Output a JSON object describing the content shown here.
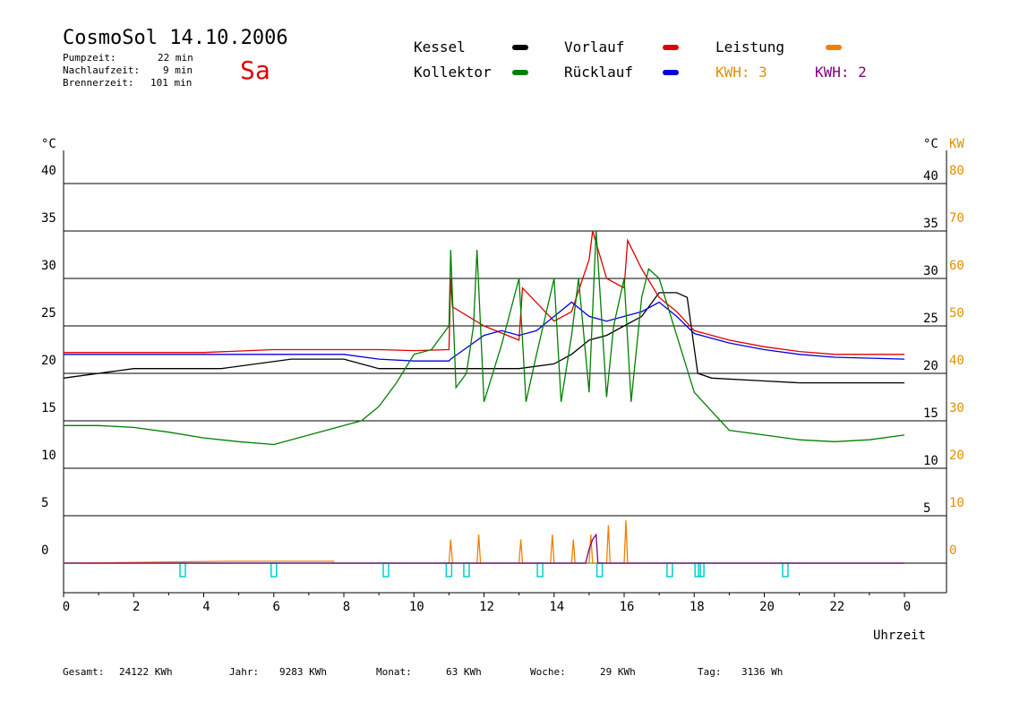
{
  "header": {
    "title": "CosmoSol 14.10.2006",
    "day": "Sa",
    "stats": [
      {
        "label": "Pumpzeit:",
        "value": "22 min"
      },
      {
        "label": "Nachlaufzeit:",
        "value": "9 min"
      },
      {
        "label": "Brennerzeit:",
        "value": "101 min"
      }
    ]
  },
  "legend": {
    "kessel": {
      "label": "Kessel",
      "color": "#000000"
    },
    "vorlauf": {
      "label": "Vorlauf",
      "color": "#e00000"
    },
    "leistung": {
      "label": "Leistung",
      "color": "#f08000"
    },
    "kollektor": {
      "label": "Kollektor",
      "color": "#008000"
    },
    "ruecklauf": {
      "label": "Rücklauf",
      "color": "#0000e0"
    },
    "kwh1": {
      "label": "KWH: 3",
      "color": "#e09000"
    },
    "kwh2": {
      "label": "KWH: 2",
      "color": "#800080"
    }
  },
  "footer": [
    {
      "label": "Gesamt:",
      "value": "24122 KWh"
    },
    {
      "label": "Jahr:",
      "value": "9283 KWh"
    },
    {
      "label": "Monat:",
      "value": "63 KWh"
    },
    {
      "label": "Woche:",
      "value": "29 KWh"
    },
    {
      "label": "Tag:",
      "value": "3136 Wh"
    }
  ],
  "chart_data": {
    "type": "line",
    "title": "CosmoSol 14.10.2006",
    "xlabel": "Uhrzeit",
    "ylabel_left": "°C",
    "ylabel_right_c": "°C",
    "ylabel_right_kw": "KW",
    "xlim": [
      0,
      24
    ],
    "ylim": [
      0,
      40
    ],
    "x_ticks": [
      "0",
      "2",
      "4",
      "6",
      "8",
      "10",
      "12",
      "14",
      "16",
      "18",
      "20",
      "22",
      "0"
    ],
    "y_ticks_left": [
      0,
      5,
      10,
      15,
      20,
      25,
      30,
      35,
      40
    ],
    "y_ticks_right_c": [
      5,
      10,
      15,
      20,
      25,
      30,
      35,
      40
    ],
    "y_ticks_right_kw": [
      0,
      10,
      20,
      30,
      40,
      50,
      60,
      70,
      80
    ],
    "grid": true,
    "series": [
      {
        "name": "Kessel",
        "color": "#000000",
        "x": [
          0,
          2,
          4.5,
          6.5,
          8,
          9,
          11,
          11.5,
          12,
          13,
          14,
          14.5,
          15,
          15.5,
          16,
          16.5,
          17,
          17.5,
          17.8,
          18.1,
          18.5,
          20,
          21,
          24
        ],
        "y": [
          19.5,
          20.5,
          20.5,
          21.5,
          21.5,
          20.5,
          20.5,
          20.5,
          20.5,
          20.5,
          21,
          22,
          23.5,
          24,
          25,
          26,
          28.5,
          28.5,
          28,
          20,
          19.5,
          19.2,
          19,
          19
        ]
      },
      {
        "name": "Vorlauf",
        "color": "#e00000",
        "x": [
          0,
          4,
          6,
          8,
          9,
          10,
          11,
          11.05,
          11.1,
          12,
          13,
          13.1,
          14,
          14.5,
          15,
          15.1,
          15.5,
          16,
          16.1,
          16.5,
          17,
          17.5,
          18,
          19,
          20,
          21,
          22,
          24
        ],
        "y": [
          22.2,
          22.2,
          22.5,
          22.5,
          22.5,
          22.4,
          22.5,
          30,
          27,
          25,
          23.5,
          29,
          25.5,
          26.5,
          32,
          35,
          30,
          29,
          34,
          31,
          28,
          26.5,
          24.5,
          23.5,
          22.8,
          22.3,
          22,
          22
        ]
      },
      {
        "name": "Rücklauf",
        "color": "#0000e0",
        "x": [
          0,
          4,
          6,
          8,
          9,
          10,
          11,
          11.05,
          12,
          12.5,
          13,
          13.5,
          14,
          14.5,
          15,
          15.5,
          16,
          16.5,
          17,
          17.5,
          18,
          19,
          20,
          21,
          22,
          24
        ],
        "y": [
          22,
          22,
          22,
          22,
          21.5,
          21.3,
          21.3,
          21.5,
          24,
          24.5,
          24,
          24.5,
          26,
          27.5,
          26,
          25.5,
          26,
          26.5,
          27.5,
          26,
          24.2,
          23.2,
          22.5,
          22,
          21.7,
          21.5
        ]
      },
      {
        "name": "Kollektor",
        "color": "#008000",
        "x": [
          0,
          1,
          2,
          3,
          4,
          5,
          6,
          7,
          8,
          8.5,
          9,
          9.5,
          10,
          10.5,
          11,
          11.05,
          11.2,
          11.5,
          11.7,
          11.8,
          12,
          12.5,
          13,
          13.2,
          13.5,
          14,
          14.2,
          14.5,
          14.7,
          15,
          15.2,
          15.5,
          15.7,
          16,
          16.2,
          16.5,
          16.7,
          17,
          17.5,
          18,
          18.5,
          19,
          20,
          21,
          22,
          23,
          24
        ],
        "y": [
          14.5,
          14.5,
          14.3,
          13.8,
          13.2,
          12.8,
          12.5,
          13.5,
          14.5,
          15,
          16.5,
          19,
          22,
          22.5,
          25,
          33,
          18.5,
          20,
          25,
          33,
          17,
          23,
          30,
          17,
          22,
          30,
          17,
          24,
          30,
          18,
          35,
          17.5,
          25,
          30,
          17,
          28,
          31,
          30,
          24,
          18,
          16,
          14,
          13.5,
          13,
          12.8,
          13,
          13.5
        ]
      }
    ],
    "power_series": [
      {
        "name": "Leistung",
        "color": "#f08000",
        "x": [
          0,
          4.7,
          4.71,
          7.7,
          7.71,
          11,
          11.05,
          11.1,
          11.8,
          11.85,
          11.9,
          13,
          13.05,
          13.1,
          13.9,
          13.95,
          14,
          14.5,
          14.55,
          14.6,
          15,
          15.05,
          15.1,
          15.5,
          15.55,
          15.6,
          16,
          16.05,
          16.1,
          24
        ],
        "y": [
          0,
          0.2,
          0.2,
          0.2,
          0,
          0,
          2.5,
          0,
          0,
          3,
          0,
          0,
          2.5,
          0,
          0,
          3,
          0,
          0,
          2.5,
          0,
          0,
          3,
          0,
          0,
          4,
          0,
          0,
          4.5,
          0,
          0
        ]
      },
      {
        "name": "KWH: 2",
        "color": "#800080",
        "x": [
          0,
          14.9,
          15,
          15.1,
          15.2,
          15.25,
          24
        ],
        "y": [
          0,
          0,
          1.5,
          2.5,
          3,
          0,
          0
        ]
      }
    ],
    "pump_markers_x": [
      3.4,
      6,
      9.2,
      11,
      11.5,
      13.6,
      15.3,
      17.3,
      18.1,
      18.2,
      20.6
    ],
    "pump_level": 0
  }
}
